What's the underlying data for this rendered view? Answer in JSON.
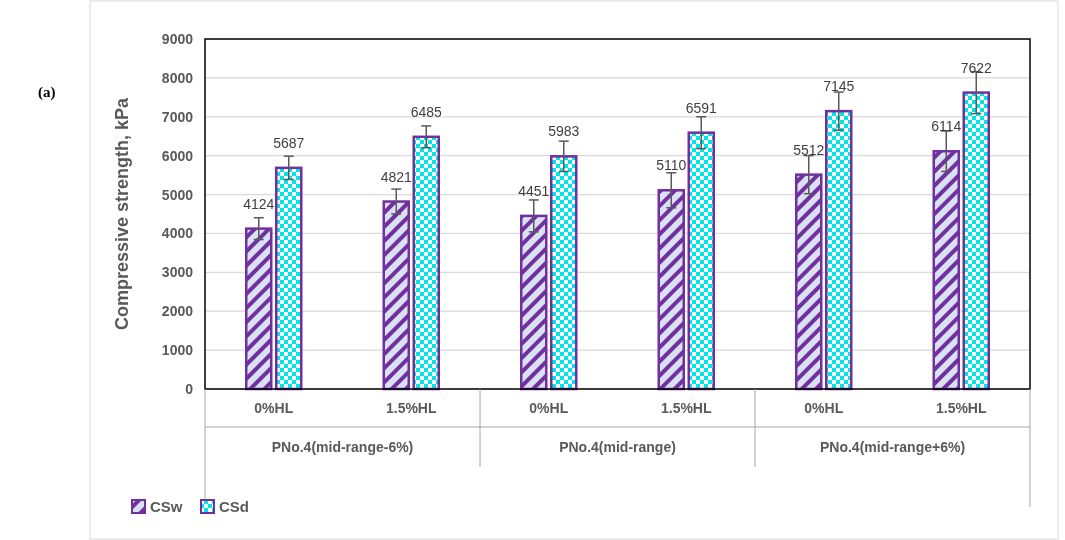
{
  "chart_data": {
    "type": "bar",
    "ylabel": "Compressive strength, kPa",
    "categories": [
      "0%HL",
      "1.5%HL",
      "0%HL",
      "1.5%HL",
      "0%HL",
      "1.5%HL"
    ],
    "series": [
      {
        "name": "CSw",
        "color": "#7030a0",
        "values": [
          4124,
          4821,
          4451,
          5110,
          5512,
          6114
        ],
        "errors": [
          280,
          320,
          410,
          450,
          490,
          520
        ]
      },
      {
        "name": "CSd",
        "color": "#7030a0",
        "values": [
          5687,
          6485,
          5983,
          6591,
          7145,
          7622
        ],
        "errors": [
          300,
          280,
          390,
          410,
          490,
          540
        ]
      }
    ],
    "annotations": [
      "(a)",
      "PNo.4(mid-range-6%)",
      "PNo.4(mid-range)",
      "PNo.4(mid-range+6%)"
    ],
    "ylim": [
      0,
      9000
    ],
    "yticks": [
      0,
      1000,
      2000,
      3000,
      4000,
      5000,
      6000,
      7000,
      8000,
      9000
    ],
    "grid": "y",
    "legend": "bottom left",
    "data_labels": true
  }
}
